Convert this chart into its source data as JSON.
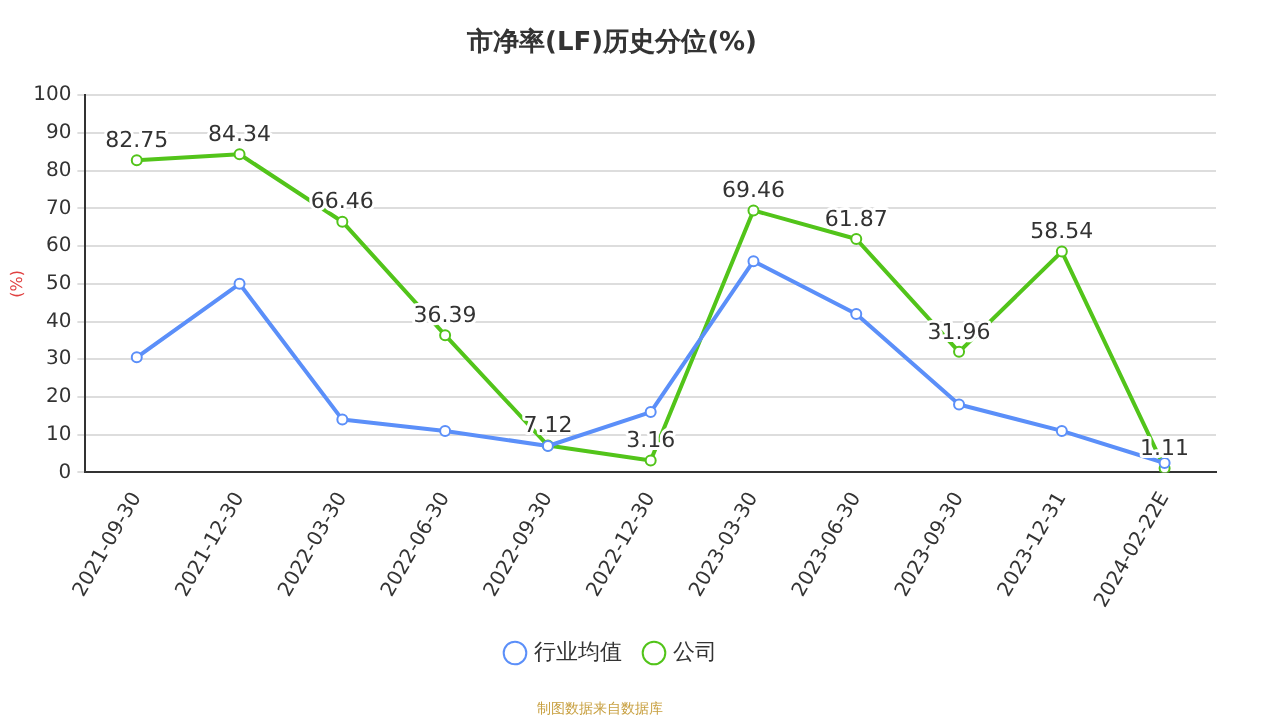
{
  "chart_data": {
    "type": "line",
    "title": "市净率(LF)历史分位(%)",
    "ylabel": "(%)",
    "categories": [
      "2021-09-30",
      "2021-12-30",
      "2022-03-30",
      "2022-06-30",
      "2022-09-30",
      "2022-12-30",
      "2023-03-30",
      "2023-06-30",
      "2023-09-30",
      "2023-12-31",
      "2024-02-22E"
    ],
    "series": [
      {
        "name": "公司",
        "color": "#52c41a",
        "values": [
          82.75,
          84.34,
          66.46,
          36.39,
          7.12,
          3.16,
          69.46,
          61.87,
          31.96,
          58.54,
          1.11
        ],
        "value_labels": [
          "82.75",
          "84.34",
          "66.46",
          "36.39",
          "7.12",
          "3.16",
          "69.46",
          "61.87",
          "31.96",
          "58.54",
          "1.11"
        ]
      },
      {
        "name": "行业均值",
        "color": "#5b8ff9",
        "values": [
          30.5,
          50,
          14,
          11,
          7,
          16,
          56,
          42,
          18,
          11,
          2.5
        ]
      }
    ],
    "ylim": [
      0,
      100
    ],
    "yticks": [
      0,
      10,
      20,
      30,
      40,
      50,
      60,
      70,
      80,
      90,
      100
    ],
    "grid": "y",
    "legend": "bottom",
    "marker": "circle",
    "line_style": "solid",
    "annotations": [
      "制图数据来自数据库"
    ]
  }
}
